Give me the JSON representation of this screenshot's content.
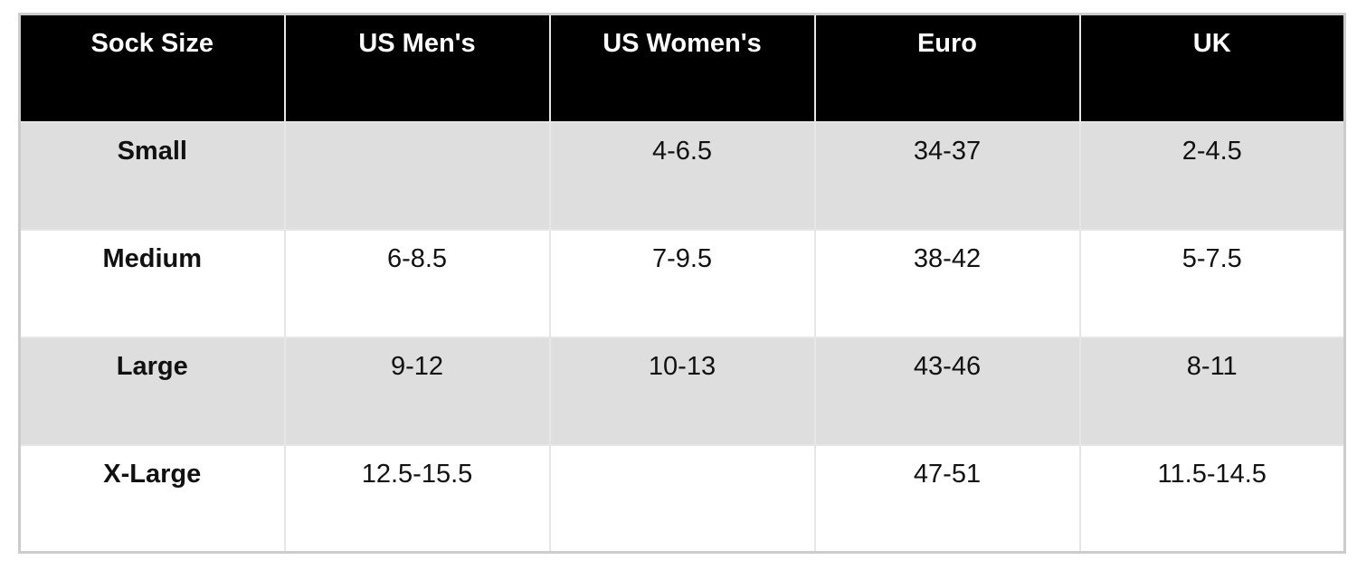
{
  "chart_data": {
    "type": "table",
    "columns": [
      "Sock Size",
      "US Men's",
      "US Women's",
      "Euro",
      "UK"
    ],
    "rows": [
      [
        "Small",
        "",
        "4-6.5",
        "34-37",
        "2-4.5"
      ],
      [
        "Medium",
        "6-8.5",
        "7-9.5",
        "38-42",
        "5-7.5"
      ],
      [
        "Large",
        "9-12",
        "10-13",
        "43-46",
        "8-11"
      ],
      [
        "X-Large",
        "12.5-15.5",
        "",
        "47-51",
        "11.5-14.5"
      ]
    ],
    "layout": {
      "header_position": "top",
      "zebra_striping": true,
      "striped_row_indexes": [
        0,
        2
      ],
      "row_label_column_index": 0,
      "cell_text_align": "center",
      "cell_vertical_align": "top"
    }
  },
  "colors": {
    "header_bg": "#000000",
    "header_text": "#ffffff",
    "row_stripe": "#dedede",
    "row_plain": "#ffffff",
    "cell_border": "#e6e6e6",
    "outer_border": "#cccccc",
    "body_text": "#111111"
  }
}
